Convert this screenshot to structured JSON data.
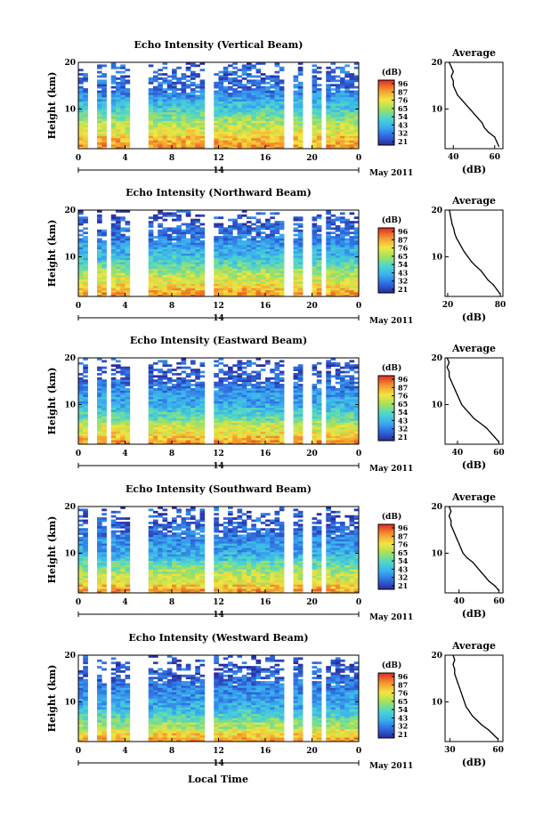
{
  "figure": {
    "xlabel": "Local Time",
    "month_label": "May 2011",
    "day_label": "14"
  },
  "chart_data": [
    {
      "type": "heatmap",
      "title": "Echo Intensity (Vertical Beam)",
      "ylabel": "Height (km)",
      "xticks": [
        "0",
        "4",
        "8",
        "12",
        "16",
        "20",
        "0"
      ],
      "yticks": [
        "10",
        "20"
      ],
      "xlim": [
        0,
        24
      ],
      "ylim": [
        1.5,
        20
      ],
      "colorbar_label": "(dB)",
      "colorbar_ticks": [
        "96",
        "87",
        "76",
        "65",
        "54",
        "43",
        "32",
        "21"
      ],
      "colorbar_range": [
        21,
        96
      ],
      "gaps_hours": [
        [
          1.0,
          1.4
        ],
        [
          2.4,
          2.8
        ],
        [
          4.6,
          6.0
        ],
        [
          10.8,
          11.6
        ],
        [
          17.8,
          18.2
        ],
        [
          19.4,
          19.8
        ],
        [
          20.8,
          21.2
        ]
      ],
      "profile": {
        "title": "Average",
        "xlabel": "(dB)",
        "xticks": [
          "40",
          "60"
        ],
        "xlim": [
          36,
          64
        ],
        "yticks": [
          "10",
          "20"
        ],
        "heights": [
          2,
          3,
          4,
          5,
          6,
          7,
          8,
          9,
          10,
          11,
          12,
          13,
          14,
          15,
          16,
          17,
          18,
          19,
          20
        ],
        "values": [
          62,
          61,
          60,
          57,
          55,
          54,
          52,
          50,
          48,
          46,
          44,
          42,
          41,
          40,
          40,
          39,
          40,
          39,
          38
        ]
      }
    },
    {
      "type": "heatmap",
      "title": "Echo Intensity (Northward Beam)",
      "ylabel": "Height (km)",
      "xticks": [
        "0",
        "4",
        "8",
        "12",
        "16",
        "20",
        "0"
      ],
      "yticks": [
        "10",
        "20"
      ],
      "xlim": [
        0,
        24
      ],
      "ylim": [
        1.5,
        20
      ],
      "colorbar_label": "(dB)",
      "colorbar_ticks": [
        "96",
        "87",
        "76",
        "65",
        "54",
        "43",
        "32",
        "21"
      ],
      "colorbar_range": [
        21,
        96
      ],
      "gaps_hours": [
        [
          1.0,
          1.4
        ],
        [
          2.4,
          2.8
        ],
        [
          4.6,
          6.0
        ],
        [
          10.8,
          11.6
        ],
        [
          17.8,
          18.2
        ],
        [
          19.4,
          19.8
        ],
        [
          20.8,
          21.2
        ]
      ],
      "profile": {
        "title": "Average",
        "xlabel": "(dB)",
        "xticks": [
          "20",
          "80"
        ],
        "xlim": [
          17,
          83
        ],
        "yticks": [
          "10",
          "20"
        ],
        "heights": [
          2,
          3,
          4,
          5,
          6,
          7,
          8,
          9,
          10,
          11,
          12,
          13,
          14,
          15,
          16,
          17,
          18,
          19,
          20
        ],
        "values": [
          80,
          76,
          72,
          66,
          62,
          58,
          52,
          47,
          43,
          39,
          36,
          33,
          30,
          28,
          27,
          25,
          24,
          23,
          22
        ]
      }
    },
    {
      "type": "heatmap",
      "title": "Echo Intensity (Eastward Beam)",
      "ylabel": "Height (km)",
      "xticks": [
        "0",
        "4",
        "8",
        "12",
        "16",
        "20",
        "0"
      ],
      "yticks": [
        "10",
        "20"
      ],
      "xlim": [
        0,
        24
      ],
      "ylim": [
        1.5,
        20
      ],
      "colorbar_label": "(dB)",
      "colorbar_ticks": [
        "96",
        "87",
        "76",
        "65",
        "54",
        "43",
        "32",
        "21"
      ],
      "colorbar_range": [
        21,
        96
      ],
      "gaps_hours": [
        [
          1.0,
          1.4
        ],
        [
          2.4,
          2.8
        ],
        [
          4.6,
          6.0
        ],
        [
          10.8,
          11.6
        ],
        [
          17.8,
          18.2
        ],
        [
          19.4,
          19.8
        ],
        [
          20.8,
          21.2
        ]
      ],
      "profile": {
        "title": "Average",
        "xlabel": "(dB)",
        "xticks": [
          "40",
          "60"
        ],
        "xlim": [
          34,
          62
        ],
        "yticks": [
          "10",
          "20"
        ],
        "heights": [
          2,
          3,
          4,
          5,
          6,
          7,
          8,
          9,
          10,
          11,
          12,
          13,
          14,
          15,
          16,
          17,
          18,
          19,
          20
        ],
        "values": [
          60,
          58,
          56,
          54,
          51,
          48,
          46,
          44,
          42,
          41,
          40,
          39,
          38,
          37,
          36,
          36,
          35,
          36,
          35
        ]
      }
    },
    {
      "type": "heatmap",
      "title": "Echo Intensity (Southward Beam)",
      "ylabel": "Height (km)",
      "xticks": [
        "0",
        "4",
        "8",
        "12",
        "16",
        "20",
        "0"
      ],
      "yticks": [
        "10",
        "20"
      ],
      "xlim": [
        0,
        24
      ],
      "ylim": [
        1.5,
        20
      ],
      "colorbar_label": "(dB)",
      "colorbar_ticks": [
        "96",
        "87",
        "76",
        "65",
        "54",
        "43",
        "32",
        "21"
      ],
      "colorbar_range": [
        21,
        96
      ],
      "gaps_hours": [
        [
          1.0,
          1.4
        ],
        [
          2.4,
          2.8
        ],
        [
          4.6,
          6.0
        ],
        [
          10.8,
          11.6
        ],
        [
          17.8,
          18.2
        ],
        [
          19.4,
          19.8
        ],
        [
          20.8,
          21.2
        ]
      ],
      "profile": {
        "title": "Average",
        "xlabel": "(dB)",
        "xticks": [
          "40",
          "60"
        ],
        "xlim": [
          33,
          62
        ],
        "yticks": [
          "10",
          "20"
        ],
        "heights": [
          2,
          3,
          4,
          5,
          6,
          7,
          8,
          9,
          10,
          11,
          12,
          13,
          14,
          15,
          16,
          17,
          18,
          19,
          20
        ],
        "values": [
          60,
          58,
          55,
          53,
          51,
          49,
          47,
          44,
          42,
          41,
          40,
          39,
          38,
          37,
          36,
          36,
          35,
          36,
          35
        ]
      }
    },
    {
      "type": "heatmap",
      "title": "Echo Intensity (Westward Beam)",
      "ylabel": "Height (km)",
      "xticks": [
        "0",
        "4",
        "8",
        "12",
        "16",
        "20",
        "0"
      ],
      "yticks": [
        "10",
        "20"
      ],
      "xlim": [
        0,
        24
      ],
      "ylim": [
        1.5,
        20
      ],
      "colorbar_label": "(dB)",
      "colorbar_ticks": [
        "96",
        "87",
        "76",
        "65",
        "54",
        "43",
        "32",
        "21"
      ],
      "colorbar_range": [
        21,
        96
      ],
      "gaps_hours": [
        [
          1.0,
          1.4
        ],
        [
          2.4,
          2.8
        ],
        [
          4.6,
          6.0
        ],
        [
          10.8,
          11.6
        ],
        [
          17.8,
          18.2
        ],
        [
          19.4,
          19.8
        ],
        [
          20.8,
          21.2
        ]
      ],
      "profile": {
        "title": "Average",
        "xlabel": "(dB)",
        "xticks": [
          "30",
          "60"
        ],
        "xlim": [
          27,
          63
        ],
        "yticks": [
          "10",
          "20"
        ],
        "heights": [
          2,
          3,
          4,
          5,
          6,
          7,
          8,
          9,
          10,
          11,
          12,
          13,
          14,
          15,
          16,
          17,
          18,
          19,
          20
        ],
        "values": [
          60,
          57,
          54,
          50,
          47,
          44,
          42,
          40,
          39,
          38,
          37,
          36,
          35,
          34,
          33,
          33,
          32,
          33,
          32
        ]
      }
    }
  ]
}
